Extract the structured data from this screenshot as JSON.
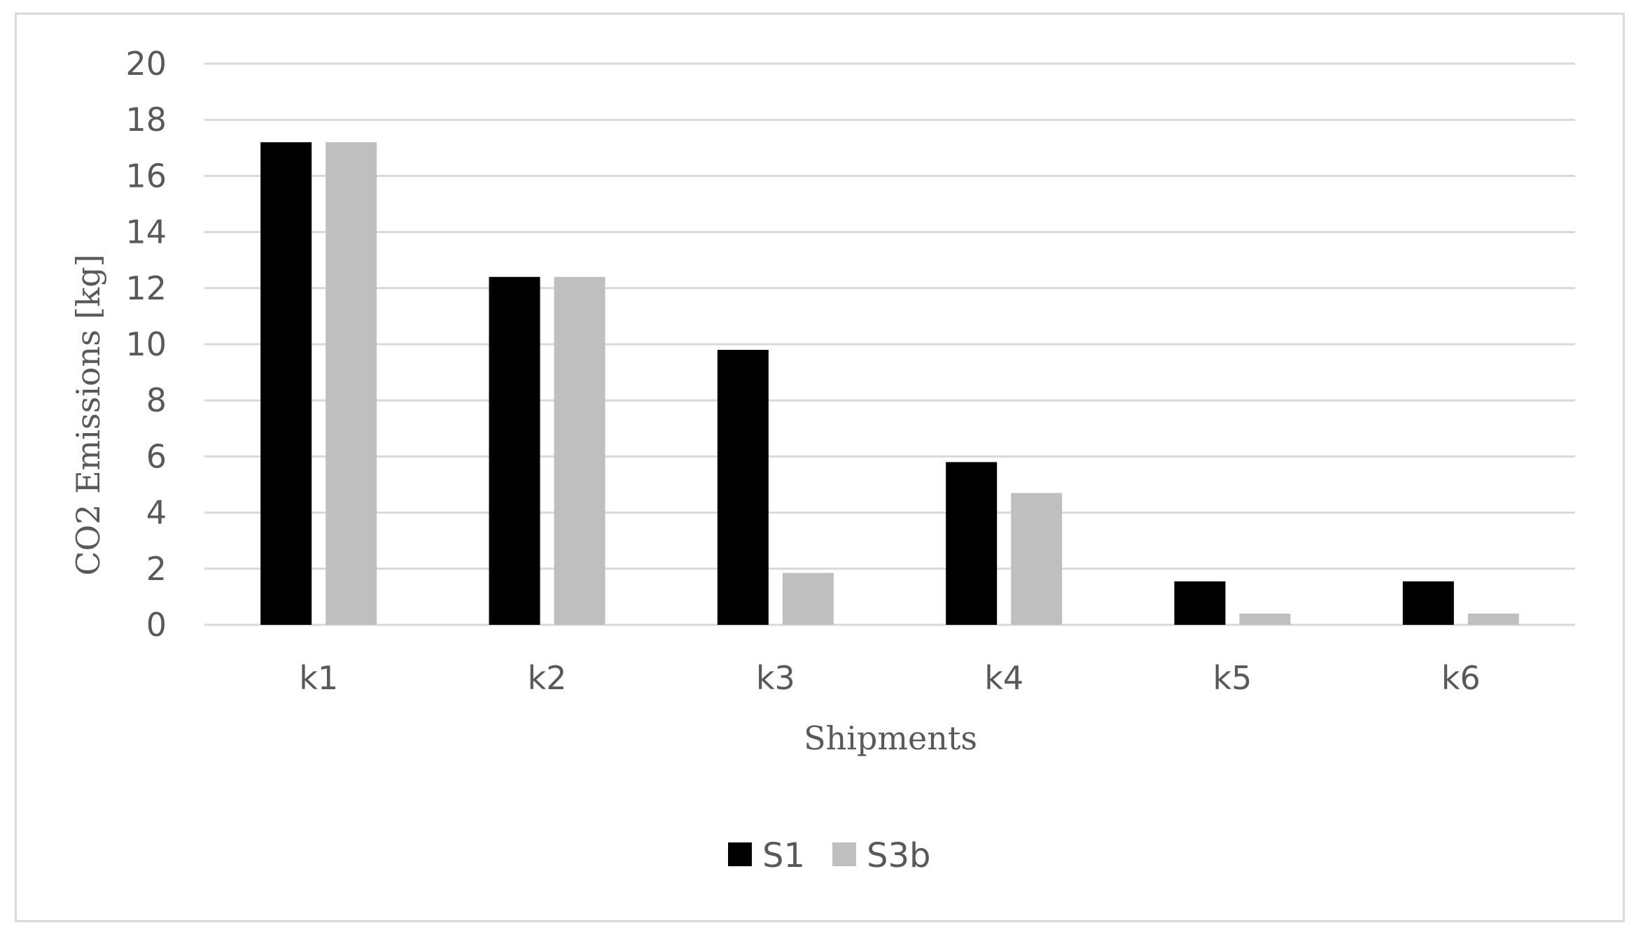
{
  "chart_data": {
    "type": "bar",
    "title": "",
    "xlabel": "Shipments",
    "ylabel": "CO2 Emissions [kg]",
    "categories": [
      "k1",
      "k2",
      "k3",
      "k4",
      "k5",
      "k6"
    ],
    "series": [
      {
        "name": "S1",
        "color": "#000000",
        "values": [
          17.2,
          12.4,
          9.8,
          5.8,
          1.55,
          1.55
        ]
      },
      {
        "name": "S3b",
        "color": "#bfbfbf",
        "values": [
          17.2,
          12.4,
          1.85,
          4.7,
          0.4,
          0.4
        ]
      }
    ],
    "ylim": [
      0,
      20
    ],
    "yticks": [
      "0",
      "2",
      "4",
      "6",
      "8",
      "10",
      "12",
      "14",
      "16",
      "18",
      "20"
    ],
    "grid": true,
    "legend_position": "bottom"
  }
}
